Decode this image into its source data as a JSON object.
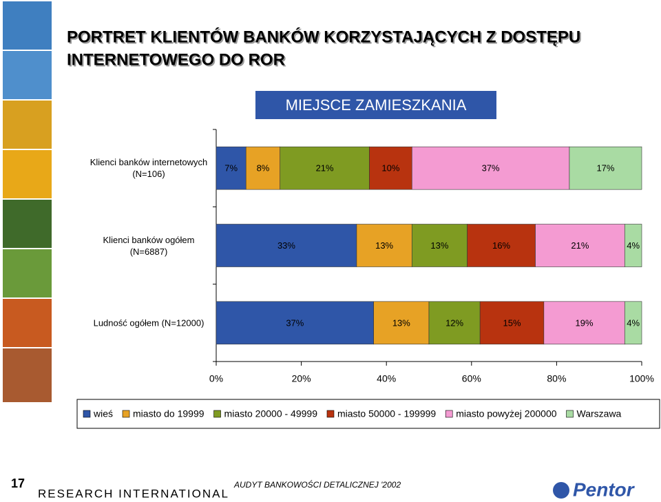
{
  "chart_data": {
    "type": "bar",
    "orientation": "horizontal",
    "stacked": true,
    "title": [
      "PORTRET KLIENTÓW BANKÓW KORZYSTAJĄCYCH Z DOSTĘPU",
      "INTERNETOWEGO DO ROR"
    ],
    "subtitle": "MIEJSCE ZAMIESZKANIA",
    "categories": [
      "Klienci banków internetowych (N=106)",
      "Klienci banków ogółem (N=6887)",
      "Ludność ogółem (N=12000)"
    ],
    "series": [
      {
        "name": "wieś",
        "color": "#2f56a8",
        "values": [
          7,
          33,
          37
        ],
        "value_labels": [
          "7%",
          "33%",
          "37%"
        ]
      },
      {
        "name": "miasto do 19999",
        "color": "#e7a225",
        "values": [
          8,
          13,
          13
        ],
        "value_labels": [
          "8%",
          "13%",
          "13%"
        ]
      },
      {
        "name": "miasto 20000 - 49999",
        "color": "#7f9b22",
        "values": [
          21,
          13,
          12
        ],
        "value_labels": [
          "21%",
          "13%",
          "12%"
        ]
      },
      {
        "name": "miasto 50000 - 199999",
        "color": "#b8330f",
        "values": [
          10,
          16,
          15
        ],
        "value_labels": [
          "10%",
          "16%",
          "15%"
        ]
      },
      {
        "name": "miasto powyżej 200000",
        "color": "#f49bd2",
        "values": [
          37,
          21,
          19
        ],
        "value_labels": [
          "37%",
          "21%",
          "19%"
        ]
      },
      {
        "name": "Warszawa",
        "color": "#a9dba3",
        "values": [
          17,
          4,
          4
        ],
        "value_labels": [
          "17%",
          "4%",
          "4%"
        ]
      }
    ],
    "xlim": [
      0,
      100
    ],
    "xticks": [
      {
        "value": 0,
        "label": "0%"
      },
      {
        "value": 20,
        "label": "20%"
      },
      {
        "value": 40,
        "label": "40%"
      },
      {
        "value": 60,
        "label": "60%"
      },
      {
        "value": 80,
        "label": "80%"
      },
      {
        "value": 100,
        "label": "100%"
      }
    ],
    "legend": "bottom"
  },
  "footer": {
    "page_number": "17",
    "company": "RESEARCH INTERNATIONAL",
    "report": "AUDYT BANKOWOŚCI DETALICZNEJ '2002",
    "logo": "Pentor"
  }
}
